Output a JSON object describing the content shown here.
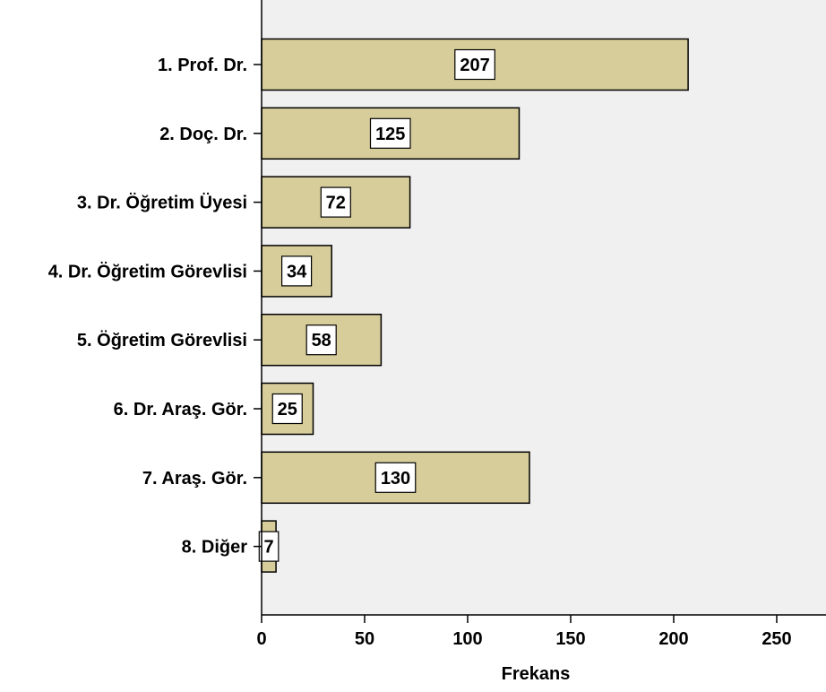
{
  "chart_data": {
    "type": "bar",
    "orientation": "horizontal",
    "categories": [
      "1. Prof. Dr.",
      "2. Doç. Dr.",
      "3. Dr. Öğretim Üyesi",
      "4. Dr. Öğretim Görevlisi",
      "5. Öğretim Görevlisi",
      "6. Dr. Araş. Gör.",
      "7. Araş. Gör.",
      "8. Diğer"
    ],
    "values": [
      207,
      125,
      72,
      34,
      58,
      25,
      130,
      7
    ],
    "data_labels": [
      "207",
      "125",
      "72",
      "34",
      "58",
      "25",
      "130",
      "7"
    ],
    "xlabel": "Frekans",
    "ylabel": "",
    "title": "",
    "xlim": [
      0,
      275
    ],
    "xticks": [
      0,
      50,
      100,
      150,
      200,
      250
    ],
    "xtick_labels": [
      "0",
      "50",
      "100",
      "150",
      "200",
      "250"
    ],
    "grid": false,
    "colors": {
      "bar_fill": "#d6cd9a",
      "bar_stroke": "#000000",
      "plot_background": "#f0f0f0",
      "label_box": "#ffffff"
    }
  }
}
